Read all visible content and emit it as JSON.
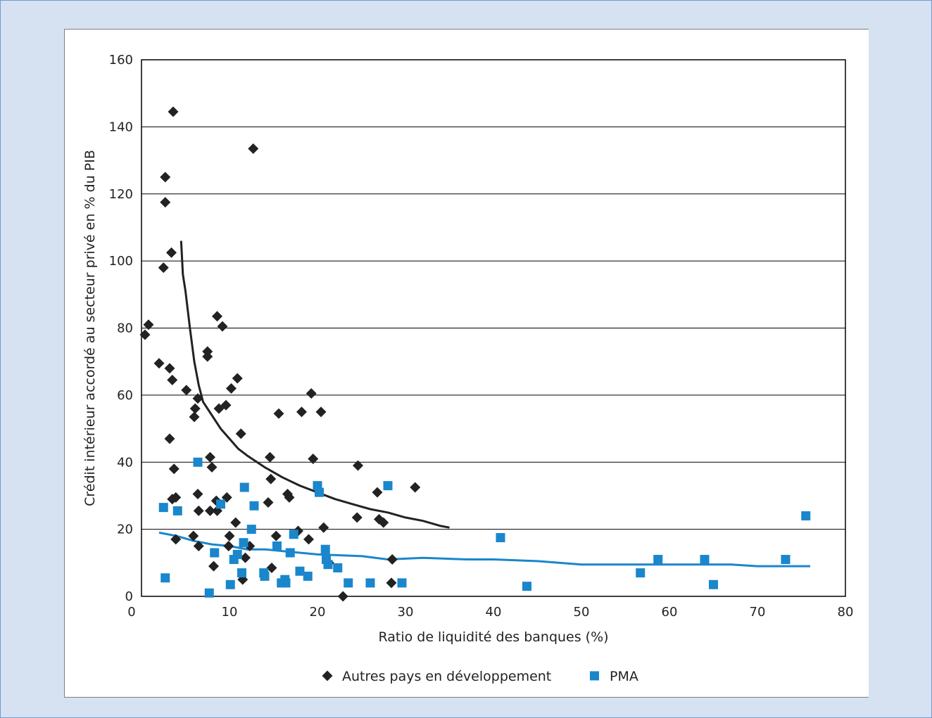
{
  "chart_data": {
    "type": "scatter",
    "xlabel": "Ratio de liquidité des banques (%)",
    "ylabel": "Crédit intérieur accordé au secteur privé en % du PIB",
    "xlim": [
      0,
      80
    ],
    "ylim": [
      0,
      160
    ],
    "x_ticks": [
      0,
      10,
      20,
      30,
      40,
      50,
      60,
      70,
      80
    ],
    "y_ticks": [
      0,
      20,
      40,
      60,
      80,
      100,
      120,
      140,
      160
    ],
    "grid": "horizontal",
    "legend_position": "bottom",
    "series": [
      {
        "name": "Autres pays en développement",
        "marker": "diamond",
        "color": "#222222",
        "points": [
          [
            0.4,
            78
          ],
          [
            0.8,
            81
          ],
          [
            2.0,
            69.5
          ],
          [
            2.5,
            98
          ],
          [
            2.7,
            125
          ],
          [
            2.7,
            117.5
          ],
          [
            3.2,
            68
          ],
          [
            3.2,
            47
          ],
          [
            3.4,
            102.5
          ],
          [
            3.5,
            64.5
          ],
          [
            3.6,
            144.5
          ],
          [
            3.5,
            29
          ],
          [
            3.7,
            38
          ],
          [
            3.9,
            17
          ],
          [
            3.9,
            29.5
          ],
          [
            5.1,
            61.5
          ],
          [
            5.9,
            18
          ],
          [
            6.0,
            53.5
          ],
          [
            6.1,
            56
          ],
          [
            6.4,
            59
          ],
          [
            6.4,
            30.5
          ],
          [
            6.5,
            15
          ],
          [
            6.5,
            25.5
          ],
          [
            7.5,
            71.5
          ],
          [
            7.5,
            73
          ],
          [
            7.8,
            41.5
          ],
          [
            7.8,
            25.5
          ],
          [
            8.0,
            38.5
          ],
          [
            8.2,
            9
          ],
          [
            8.5,
            28.5
          ],
          [
            8.6,
            83.5
          ],
          [
            8.6,
            25.5
          ],
          [
            8.8,
            56
          ],
          [
            9.2,
            80.5
          ],
          [
            9.6,
            57
          ],
          [
            9.7,
            29.5
          ],
          [
            9.9,
            15
          ],
          [
            10.0,
            18
          ],
          [
            10.2,
            62
          ],
          [
            10.7,
            22
          ],
          [
            10.9,
            65
          ],
          [
            11.3,
            48.5
          ],
          [
            11.5,
            5
          ],
          [
            11.8,
            11.5
          ],
          [
            12.3,
            15
          ],
          [
            12.7,
            133.5
          ],
          [
            14.4,
            28
          ],
          [
            14.6,
            41.5
          ],
          [
            14.7,
            35
          ],
          [
            14.8,
            8.5
          ],
          [
            15.3,
            18
          ],
          [
            15.6,
            54.5
          ],
          [
            16.6,
            30.5
          ],
          [
            16.8,
            29.5
          ],
          [
            17.8,
            19.5
          ],
          [
            18.2,
            55
          ],
          [
            19.0,
            17
          ],
          [
            19.3,
            60.5
          ],
          [
            19.5,
            41
          ],
          [
            20.4,
            55
          ],
          [
            20.7,
            20.5
          ],
          [
            21.3,
            10
          ],
          [
            22.9,
            0
          ],
          [
            24.5,
            23.5
          ],
          [
            24.6,
            39
          ],
          [
            26.8,
            31
          ],
          [
            27.0,
            23
          ],
          [
            27.5,
            22
          ],
          [
            28.4,
            4
          ],
          [
            28.5,
            11
          ],
          [
            31.1,
            32.5
          ]
        ],
        "trend": [
          [
            4.5,
            106
          ],
          [
            4.7,
            96
          ],
          [
            5.0,
            91
          ],
          [
            5.5,
            80
          ],
          [
            6.0,
            70
          ],
          [
            6.5,
            63
          ],
          [
            7.0,
            58
          ],
          [
            8.0,
            54
          ],
          [
            9.0,
            50
          ],
          [
            10.0,
            47
          ],
          [
            11.0,
            44
          ],
          [
            12.0,
            42
          ],
          [
            14.0,
            38.5
          ],
          [
            16.0,
            35.5
          ],
          [
            18.0,
            33
          ],
          [
            20.0,
            31
          ],
          [
            22.0,
            29
          ],
          [
            24.0,
            27.5
          ],
          [
            26.0,
            26
          ],
          [
            28.0,
            25
          ],
          [
            30.0,
            23.5
          ],
          [
            32.0,
            22.5
          ],
          [
            34.0,
            21
          ],
          [
            35.0,
            20.5
          ]
        ]
      },
      {
        "name": "PMA",
        "marker": "square",
        "color": "#1a86cc",
        "points": [
          [
            2.5,
            26.5
          ],
          [
            2.7,
            5.5
          ],
          [
            4.1,
            25.5
          ],
          [
            6.4,
            40
          ],
          [
            7.7,
            1
          ],
          [
            8.3,
            13
          ],
          [
            9.0,
            27.5
          ],
          [
            10.1,
            3.5
          ],
          [
            10.5,
            11
          ],
          [
            10.9,
            12.5
          ],
          [
            11.4,
            7
          ],
          [
            11.6,
            16
          ],
          [
            11.7,
            32.5
          ],
          [
            12.5,
            20
          ],
          [
            12.8,
            27
          ],
          [
            13.9,
            7
          ],
          [
            14.0,
            6
          ],
          [
            15.4,
            15
          ],
          [
            15.9,
            4
          ],
          [
            16.3,
            5
          ],
          [
            16.4,
            4
          ],
          [
            16.9,
            13
          ],
          [
            17.3,
            18.5
          ],
          [
            18.0,
            7.5
          ],
          [
            18.9,
            6
          ],
          [
            20.0,
            33
          ],
          [
            20.2,
            31
          ],
          [
            20.9,
            14
          ],
          [
            21.0,
            11
          ],
          [
            21.2,
            9.5
          ],
          [
            22.3,
            8.5
          ],
          [
            23.5,
            4
          ],
          [
            26.0,
            4
          ],
          [
            28.0,
            33
          ],
          [
            29.6,
            4
          ],
          [
            40.8,
            17.5
          ],
          [
            43.8,
            3
          ],
          [
            56.7,
            7
          ],
          [
            58.7,
            11
          ],
          [
            64.0,
            11
          ],
          [
            65.0,
            3.5
          ],
          [
            73.2,
            11
          ],
          [
            75.5,
            24
          ]
        ],
        "trend": [
          [
            2.0,
            19
          ],
          [
            4.0,
            18
          ],
          [
            6.0,
            16.5
          ],
          [
            8.0,
            15.5
          ],
          [
            10.0,
            15
          ],
          [
            12.0,
            14
          ],
          [
            14.0,
            14
          ],
          [
            16.0,
            13.5
          ],
          [
            20.0,
            12.5
          ],
          [
            25.0,
            12
          ],
          [
            28.0,
            11
          ],
          [
            32.0,
            11.5
          ],
          [
            37.0,
            11
          ],
          [
            40.0,
            11
          ],
          [
            45.0,
            10.5
          ],
          [
            50.0,
            9.5
          ],
          [
            56.0,
            9.5
          ],
          [
            60.0,
            9.5
          ],
          [
            67.0,
            9.5
          ],
          [
            70.0,
            9
          ],
          [
            76.0,
            9
          ]
        ]
      }
    ]
  }
}
